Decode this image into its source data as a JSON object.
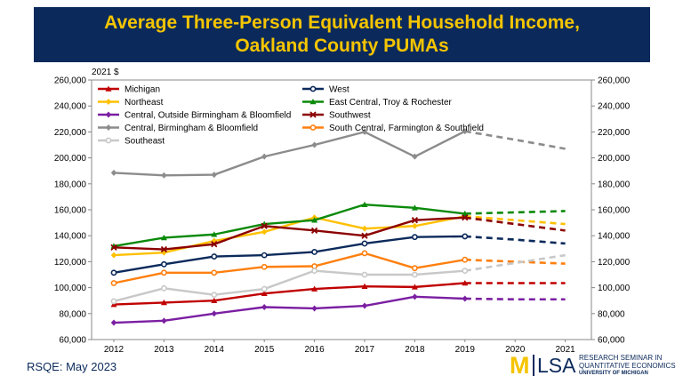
{
  "banner": {
    "title_line1": "Average Three-Person Equivalent Household Income,",
    "title_line2": "Oakland County PUMAs"
  },
  "footer": {
    "source": "RSQE: May 2023"
  },
  "logo": {
    "m": "M",
    "lsa": "LSA",
    "line1": "RESEARCH SEMINAR IN",
    "line2": "QUANTITATIVE ECONOMICS",
    "line3": "UNIVERSITY OF MICHIGAN"
  },
  "chart_data": {
    "type": "line",
    "unit_label": "2021 $",
    "x": [
      2012,
      2013,
      2014,
      2015,
      2016,
      2017,
      2018,
      2019,
      2020,
      2021
    ],
    "ylim": [
      60000,
      260000
    ],
    "yticks": [
      "60,000",
      "80,000",
      "100,000",
      "120,000",
      "140,000",
      "160,000",
      "180,000",
      "200,000",
      "220,000",
      "240,000",
      "260,000"
    ],
    "dual_y_axis": true,
    "actual_through": 2019,
    "projection_style": "dashed 2019-2021",
    "grid": false,
    "legend_position": "top-left, two columns",
    "series": [
      {
        "name": "Michigan",
        "color": "#c00000",
        "marker": "triangle",
        "values": [
          87000,
          88500,
          90000,
          95500,
          99000,
          101000,
          100500,
          103500,
          103500,
          103500
        ]
      },
      {
        "name": "West",
        "color": "#0b2a5b",
        "marker": "circle",
        "values": [
          111500,
          118000,
          124000,
          125000,
          127500,
          134000,
          139000,
          139500,
          137000,
          134000
        ]
      },
      {
        "name": "Northeast",
        "color": "#ffc000",
        "marker": "diamond",
        "values": [
          125000,
          127000,
          136000,
          143000,
          154000,
          145500,
          147500,
          155000,
          152000,
          149000
        ]
      },
      {
        "name": "East Central, Troy & Rochester",
        "color": "#0a8a0a",
        "marker": "triangle",
        "values": [
          132000,
          138500,
          141000,
          149000,
          152000,
          164000,
          161500,
          157000,
          158000,
          159000
        ]
      },
      {
        "name": "Central, Outside Birmingham & Bloomfield",
        "color": "#7b1fa2",
        "marker": "diamond",
        "values": [
          73000,
          74500,
          80000,
          85000,
          84000,
          86000,
          93000,
          91500,
          91000,
          91000
        ]
      },
      {
        "name": "Southwest",
        "color": "#8b0000",
        "marker": "x",
        "values": [
          131000,
          129500,
          133500,
          147500,
          144000,
          140000,
          152000,
          154000,
          149000,
          144000
        ]
      },
      {
        "name": "Central, Birmingham & Bloomfield",
        "color": "#8c8c8c",
        "marker": "diamond",
        "values": [
          188500,
          186500,
          187000,
          201000,
          210000,
          220000,
          201000,
          220500,
          214000,
          207000
        ]
      },
      {
        "name": "South Central, Farmington & Southfield",
        "color": "#ff7f0e",
        "marker": "circle",
        "values": [
          103500,
          111500,
          111500,
          116000,
          116500,
          126500,
          115000,
          121500,
          120000,
          118500
        ]
      },
      {
        "name": "Southeast",
        "color": "#c8c8c8",
        "marker": "circle",
        "values": [
          89500,
          99500,
          94500,
          99000,
          113000,
          110000,
          110000,
          113000,
          119000,
          125000
        ]
      }
    ]
  }
}
